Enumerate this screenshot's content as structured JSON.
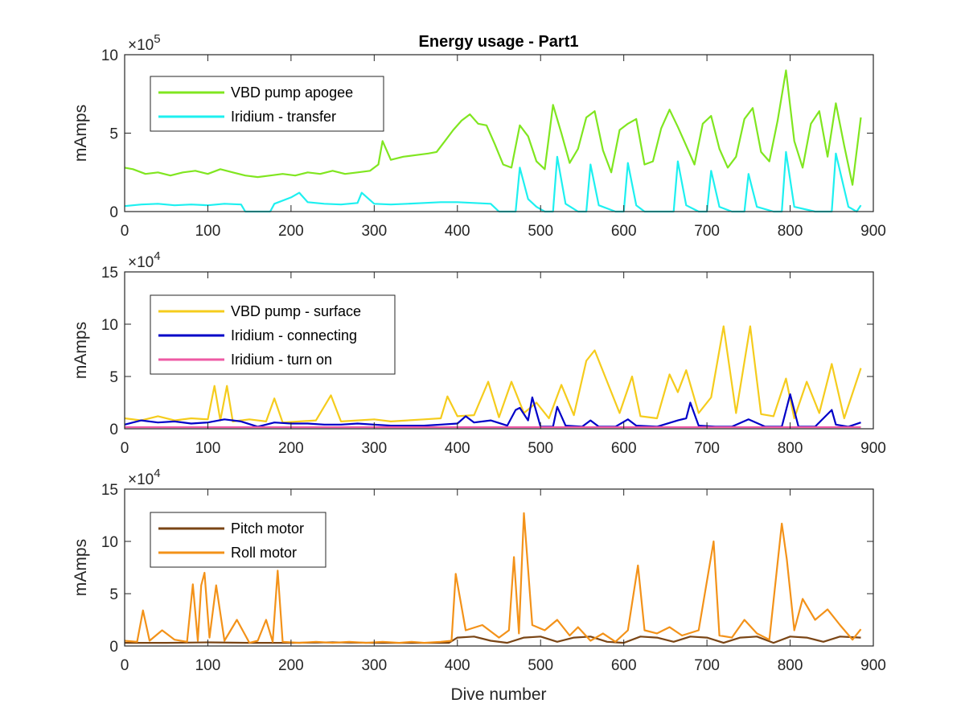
{
  "figure": {
    "title": "Energy usage - Part1",
    "xlabel": "Dive number"
  },
  "chart_data": [
    {
      "type": "line",
      "title": "Energy usage - Part1",
      "xlabel": "",
      "ylabel": "mAmps",
      "exponent": "5",
      "xlim": [
        0,
        900
      ],
      "ylim": [
        0,
        10
      ],
      "xticks": [
        "0",
        "100",
        "200",
        "300",
        "400",
        "500",
        "600",
        "700",
        "800",
        "900"
      ],
      "yticks": [
        "0",
        "5",
        "10"
      ],
      "grid": false,
      "legend": "top-left",
      "series": [
        {
          "name": "VBD pump apogee",
          "color": "#80e620",
          "x": [
            0,
            10,
            25,
            40,
            55,
            70,
            85,
            100,
            115,
            130,
            145,
            160,
            175,
            190,
            205,
            220,
            235,
            250,
            265,
            280,
            295,
            305,
            310,
            320,
            335,
            350,
            365,
            375,
            385,
            395,
            405,
            415,
            425,
            435,
            445,
            455,
            465,
            475,
            485,
            495,
            505,
            515,
            525,
            535,
            545,
            555,
            565,
            575,
            585,
            595,
            605,
            615,
            625,
            635,
            645,
            655,
            665,
            675,
            685,
            695,
            705,
            715,
            725,
            735,
            745,
            755,
            765,
            775,
            785,
            795,
            805,
            815,
            825,
            835,
            845,
            855,
            865,
            875,
            885
          ],
          "y": [
            2.8,
            2.7,
            2.4,
            2.5,
            2.3,
            2.5,
            2.6,
            2.4,
            2.7,
            2.5,
            2.3,
            2.2,
            2.3,
            2.4,
            2.3,
            2.5,
            2.4,
            2.6,
            2.4,
            2.5,
            2.6,
            3.0,
            4.5,
            3.3,
            3.5,
            3.6,
            3.7,
            3.8,
            4.5,
            5.2,
            5.8,
            6.2,
            5.6,
            5.5,
            4.3,
            3.0,
            2.8,
            5.5,
            4.8,
            3.2,
            2.7,
            6.8,
            5.0,
            3.1,
            4.0,
            6.0,
            6.4,
            3.9,
            2.5,
            5.2,
            5.6,
            5.9,
            3.0,
            3.2,
            5.3,
            6.5,
            5.4,
            4.2,
            3.0,
            5.6,
            6.1,
            4.0,
            2.8,
            3.5,
            5.9,
            6.6,
            3.8,
            3.2,
            5.8,
            9.0,
            4.5,
            2.8,
            5.6,
            6.4,
            3.5,
            6.9,
            4.2,
            1.7,
            6.0
          ]
        },
        {
          "name": "Iridium - transfer",
          "color": "#1ef0f0",
          "x": [
            0,
            20,
            40,
            60,
            80,
            100,
            120,
            140,
            145,
            160,
            175,
            180,
            200,
            210,
            220,
            240,
            260,
            280,
            285,
            300,
            320,
            340,
            360,
            380,
            400,
            420,
            440,
            450,
            460,
            470,
            475,
            485,
            495,
            505,
            515,
            520,
            530,
            545,
            555,
            560,
            570,
            590,
            600,
            605,
            615,
            625,
            645,
            660,
            665,
            675,
            690,
            700,
            705,
            715,
            730,
            745,
            750,
            760,
            780,
            790,
            795,
            805,
            830,
            850,
            855,
            870,
            880,
            885
          ],
          "y": [
            0.35,
            0.45,
            0.5,
            0.4,
            0.45,
            0.4,
            0.5,
            0.45,
            0.0,
            0.0,
            0.0,
            0.5,
            0.9,
            1.2,
            0.6,
            0.5,
            0.45,
            0.55,
            1.2,
            0.5,
            0.45,
            0.5,
            0.55,
            0.6,
            0.6,
            0.55,
            0.5,
            0.0,
            0.0,
            0.0,
            2.8,
            0.8,
            0.3,
            0.0,
            0.0,
            3.5,
            0.5,
            0.0,
            0.0,
            3.0,
            0.4,
            0.0,
            0.0,
            3.1,
            0.4,
            0.0,
            0.0,
            0.0,
            3.2,
            0.4,
            0.0,
            0.0,
            2.6,
            0.3,
            0.0,
            0.0,
            2.4,
            0.3,
            0.0,
            0.0,
            3.8,
            0.3,
            0.0,
            0.0,
            3.7,
            0.3,
            0.0,
            0.4
          ]
        }
      ]
    },
    {
      "type": "line",
      "title": "",
      "xlabel": "",
      "ylabel": "mAmps",
      "exponent": "4",
      "xlim": [
        0,
        900
      ],
      "ylim": [
        0,
        15
      ],
      "xticks": [
        "0",
        "100",
        "200",
        "300",
        "400",
        "500",
        "600",
        "700",
        "800",
        "900"
      ],
      "yticks": [
        "0",
        "5",
        "10",
        "15"
      ],
      "grid": false,
      "legend": "top-left",
      "series": [
        {
          "name": "VBD pump - surface",
          "color": "#f5cc1d",
          "x": [
            0,
            20,
            40,
            60,
            80,
            100,
            108,
            115,
            123,
            130,
            150,
            170,
            180,
            190,
            210,
            230,
            248,
            260,
            280,
            300,
            320,
            340,
            360,
            380,
            388,
            400,
            420,
            437,
            450,
            465,
            480,
            495,
            510,
            525,
            540,
            555,
            565,
            580,
            595,
            610,
            620,
            640,
            655,
            665,
            675,
            690,
            705,
            720,
            735,
            752,
            765,
            780,
            795,
            805,
            820,
            835,
            850,
            865,
            885
          ],
          "y": [
            1.0,
            0.8,
            1.2,
            0.8,
            1.0,
            0.9,
            4.1,
            0.8,
            4.1,
            0.7,
            0.9,
            0.7,
            2.9,
            0.6,
            0.7,
            0.8,
            3.2,
            0.7,
            0.8,
            0.9,
            0.7,
            0.8,
            0.9,
            1.0,
            3.1,
            1.2,
            1.3,
            4.5,
            1.1,
            4.5,
            1.5,
            2.5,
            1.0,
            4.2,
            1.3,
            6.5,
            7.5,
            4.5,
            1.5,
            5.0,
            1.2,
            1.0,
            5.2,
            3.5,
            5.6,
            1.5,
            3.0,
            9.8,
            1.5,
            9.8,
            1.4,
            1.2,
            4.8,
            1.0,
            4.5,
            1.5,
            6.2,
            1.0,
            5.8
          ]
        },
        {
          "name": "Iridium - connecting",
          "color": "#0000c8",
          "x": [
            0,
            20,
            40,
            60,
            80,
            100,
            120,
            140,
            160,
            180,
            200,
            220,
            240,
            260,
            280,
            300,
            320,
            340,
            360,
            380,
            400,
            410,
            420,
            440,
            460,
            470,
            475,
            485,
            490,
            500,
            515,
            520,
            530,
            550,
            560,
            570,
            590,
            605,
            615,
            640,
            665,
            675,
            680,
            690,
            710,
            730,
            750,
            770,
            790,
            800,
            810,
            830,
            850,
            855,
            870,
            885
          ],
          "y": [
            0.4,
            0.8,
            0.6,
            0.7,
            0.5,
            0.6,
            0.9,
            0.7,
            0.2,
            0.6,
            0.5,
            0.5,
            0.4,
            0.4,
            0.5,
            0.4,
            0.3,
            0.3,
            0.3,
            0.4,
            0.5,
            1.2,
            0.6,
            0.8,
            0.3,
            1.8,
            2.0,
            0.8,
            3.0,
            0.2,
            0.2,
            2.1,
            0.3,
            0.2,
            0.8,
            0.2,
            0.2,
            0.9,
            0.3,
            0.2,
            0.8,
            1.0,
            2.5,
            0.3,
            0.2,
            0.2,
            0.9,
            0.2,
            0.2,
            3.3,
            0.2,
            0.2,
            1.8,
            0.4,
            0.2,
            0.6
          ]
        },
        {
          "name": "Iridium - turn on",
          "color": "#ee5aa4",
          "x": [
            0,
            100,
            200,
            300,
            400,
            500,
            600,
            700,
            800,
            885
          ],
          "y": [
            0.15,
            0.15,
            0.15,
            0.15,
            0.15,
            0.15,
            0.15,
            0.15,
            0.15,
            0.15
          ]
        }
      ]
    },
    {
      "type": "line",
      "title": "",
      "xlabel": "Dive number",
      "ylabel": "mAmps",
      "exponent": "4",
      "xlim": [
        0,
        900
      ],
      "ylim": [
        0,
        15
      ],
      "xticks": [
        "0",
        "100",
        "200",
        "300",
        "400",
        "500",
        "600",
        "700",
        "800",
        "900"
      ],
      "yticks": [
        "0",
        "5",
        "10",
        "15"
      ],
      "grid": false,
      "legend": "top-left",
      "series": [
        {
          "name": "Pitch motor",
          "color": "#7a4515",
          "x": [
            0,
            50,
            100,
            150,
            200,
            250,
            300,
            350,
            390,
            400,
            420,
            440,
            460,
            480,
            500,
            520,
            540,
            560,
            580,
            600,
            620,
            640,
            660,
            680,
            700,
            720,
            740,
            760,
            780,
            800,
            820,
            840,
            860,
            885
          ],
          "y": [
            0.3,
            0.3,
            0.35,
            0.3,
            0.3,
            0.35,
            0.3,
            0.3,
            0.3,
            0.8,
            0.9,
            0.5,
            0.3,
            0.8,
            0.9,
            0.4,
            0.8,
            0.9,
            0.4,
            0.3,
            0.9,
            0.8,
            0.4,
            0.9,
            0.8,
            0.3,
            0.8,
            0.9,
            0.3,
            0.9,
            0.8,
            0.4,
            0.9,
            0.8
          ]
        },
        {
          "name": "Roll motor",
          "color": "#f39219",
          "x": [
            0,
            15,
            22,
            30,
            45,
            60,
            75,
            82,
            88,
            92,
            96,
            102,
            110,
            120,
            135,
            150,
            160,
            170,
            178,
            184,
            190,
            210,
            230,
            250,
            270,
            290,
            310,
            330,
            345,
            360,
            380,
            393,
            398,
            410,
            430,
            450,
            462,
            468,
            474,
            480,
            490,
            505,
            520,
            535,
            545,
            560,
            575,
            590,
            605,
            617,
            625,
            640,
            655,
            670,
            690,
            708,
            715,
            730,
            745,
            760,
            775,
            790,
            796,
            805,
            815,
            830,
            845,
            860,
            875,
            885
          ],
          "y": [
            0.5,
            0.4,
            3.4,
            0.5,
            1.5,
            0.6,
            0.4,
            5.9,
            0.5,
            5.8,
            7.0,
            0.8,
            5.8,
            0.5,
            2.5,
            0.3,
            0.5,
            2.5,
            0.4,
            7.2,
            0.4,
            0.3,
            0.4,
            0.3,
            0.4,
            0.3,
            0.4,
            0.3,
            0.4,
            0.3,
            0.4,
            0.5,
            6.9,
            1.5,
            2.0,
            0.8,
            1.5,
            8.5,
            1.2,
            12.7,
            2.0,
            1.5,
            2.5,
            1.0,
            1.8,
            0.5,
            1.2,
            0.4,
            1.5,
            7.7,
            1.5,
            1.2,
            1.8,
            1.0,
            1.5,
            10.0,
            1.0,
            0.8,
            2.5,
            1.2,
            0.6,
            11.7,
            8.3,
            1.5,
            4.5,
            2.5,
            3.5,
            2.0,
            0.6,
            1.6
          ]
        }
      ]
    }
  ]
}
